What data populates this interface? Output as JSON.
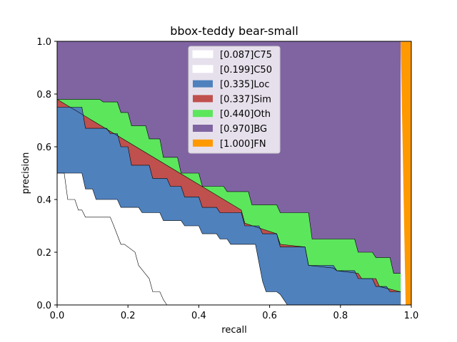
{
  "chart_data": {
    "type": "area",
    "title": "bbox-teddy bear-small",
    "xlabel": "recall",
    "ylabel": "precision",
    "xlim": [
      0.0,
      1.0
    ],
    "ylim": [
      0.0,
      1.0
    ],
    "xticks": [
      "0.0",
      "0.2",
      "0.4",
      "0.6",
      "0.8",
      "1.0"
    ],
    "yticks": [
      "0.0",
      "0.2",
      "0.4",
      "0.6",
      "0.8",
      "1.0"
    ],
    "legend_position": "top-center",
    "series": [
      {
        "name": "[0.087]C75",
        "color": "#ffffff",
        "x": [
          0.0,
          0.02,
          0.03,
          0.05,
          0.06,
          0.07,
          0.08,
          0.09,
          0.15,
          0.16,
          0.18,
          0.19,
          0.22,
          0.23,
          0.26,
          0.27,
          0.29,
          0.3,
          0.31
        ],
        "y": [
          0.5,
          0.5,
          0.4,
          0.4,
          0.36,
          0.36,
          0.333,
          0.333,
          0.333,
          0.3,
          0.23,
          0.23,
          0.2,
          0.15,
          0.1,
          0.05,
          0.05,
          0.02,
          0.0
        ]
      },
      {
        "name": "[0.199]C50",
        "color": "#ffffff",
        "x": [
          0.0,
          0.07,
          0.08,
          0.1,
          0.11,
          0.17,
          0.18,
          0.23,
          0.24,
          0.29,
          0.3,
          0.35,
          0.36,
          0.4,
          0.41,
          0.45,
          0.46,
          0.48,
          0.49,
          0.56,
          0.57,
          0.58,
          0.59,
          0.62,
          0.63,
          0.64,
          0.65
        ],
        "y": [
          0.5,
          0.5,
          0.44,
          0.44,
          0.4,
          0.4,
          0.37,
          0.37,
          0.35,
          0.35,
          0.32,
          0.32,
          0.3,
          0.3,
          0.27,
          0.27,
          0.25,
          0.25,
          0.23,
          0.23,
          0.16,
          0.09,
          0.05,
          0.05,
          0.04,
          0.02,
          0.0
        ]
      },
      {
        "name": "[0.335]Loc",
        "color": "#4f81bd",
        "x": [
          0.0,
          0.07,
          0.08,
          0.14,
          0.15,
          0.17,
          0.18,
          0.2,
          0.21,
          0.26,
          0.27,
          0.31,
          0.32,
          0.35,
          0.36,
          0.4,
          0.41,
          0.45,
          0.46,
          0.52,
          0.53,
          0.57,
          0.58,
          0.62,
          0.63,
          0.7,
          0.71,
          0.78,
          0.79,
          0.84,
          0.85,
          0.89,
          0.9,
          0.93,
          0.94,
          0.97
        ],
        "y": [
          0.75,
          0.75,
          0.67,
          0.67,
          0.65,
          0.65,
          0.6,
          0.6,
          0.53,
          0.53,
          0.48,
          0.48,
          0.45,
          0.45,
          0.41,
          0.41,
          0.37,
          0.37,
          0.35,
          0.35,
          0.3,
          0.3,
          0.27,
          0.27,
          0.22,
          0.22,
          0.15,
          0.15,
          0.13,
          0.13,
          0.1,
          0.1,
          0.07,
          0.07,
          0.05,
          0.05
        ]
      },
      {
        "name": "[0.337]Sim",
        "color": "#c0504d",
        "x": [
          0.0,
          0.52,
          0.53,
          0.62,
          0.63,
          0.7,
          0.71,
          0.78,
          0.79,
          0.85,
          0.86,
          0.9,
          0.91,
          0.97
        ],
        "y": [
          0.78,
          0.36,
          0.31,
          0.27,
          0.23,
          0.22,
          0.15,
          0.14,
          0.13,
          0.12,
          0.1,
          0.1,
          0.07,
          0.05
        ]
      },
      {
        "name": "[0.440]Oth",
        "color": "#5ce65c",
        "x": [
          0.0,
          0.12,
          0.13,
          0.17,
          0.18,
          0.2,
          0.21,
          0.25,
          0.26,
          0.29,
          0.3,
          0.34,
          0.35,
          0.4,
          0.41,
          0.47,
          0.48,
          0.54,
          0.55,
          0.62,
          0.63,
          0.71,
          0.72,
          0.84,
          0.85,
          0.89,
          0.9,
          0.94,
          0.95,
          0.97
        ],
        "y": [
          0.78,
          0.78,
          0.77,
          0.77,
          0.73,
          0.73,
          0.68,
          0.68,
          0.63,
          0.63,
          0.56,
          0.56,
          0.5,
          0.5,
          0.45,
          0.45,
          0.43,
          0.43,
          0.38,
          0.38,
          0.35,
          0.35,
          0.25,
          0.25,
          0.2,
          0.2,
          0.18,
          0.18,
          0.12,
          0.12
        ]
      },
      {
        "name": "[0.970]BG",
        "color": "#8064a2",
        "x": [
          0.0,
          0.97
        ],
        "y": [
          1.0,
          1.0
        ]
      },
      {
        "name": "[1.000]FN",
        "color": "#ff9900",
        "x": [
          0.97,
          1.0
        ],
        "y": [
          1.0,
          1.0
        ]
      }
    ]
  }
}
